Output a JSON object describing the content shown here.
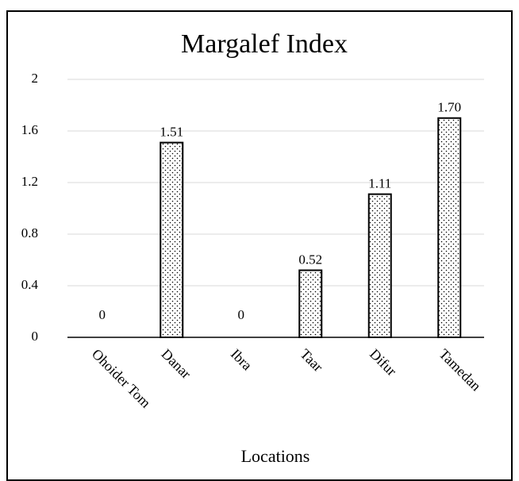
{
  "chart_data": {
    "type": "bar",
    "title": "Margalef Index",
    "x_label": "Locations",
    "categories": [
      "Ohoider Tom",
      "Danar",
      "Ibra",
      "Taar",
      "Difur",
      "Tamedan"
    ],
    "values": [
      0,
      1.51,
      0,
      0.52,
      1.11,
      1.7
    ],
    "value_labels": [
      "0",
      "1.51",
      "0",
      "0.52",
      "1.11",
      "1.70"
    ],
    "color": "#000000",
    "ylim": [
      0,
      2
    ],
    "yticks": [
      0,
      0.4,
      0.8,
      1.2,
      1.6,
      2
    ],
    "grid": true
  }
}
